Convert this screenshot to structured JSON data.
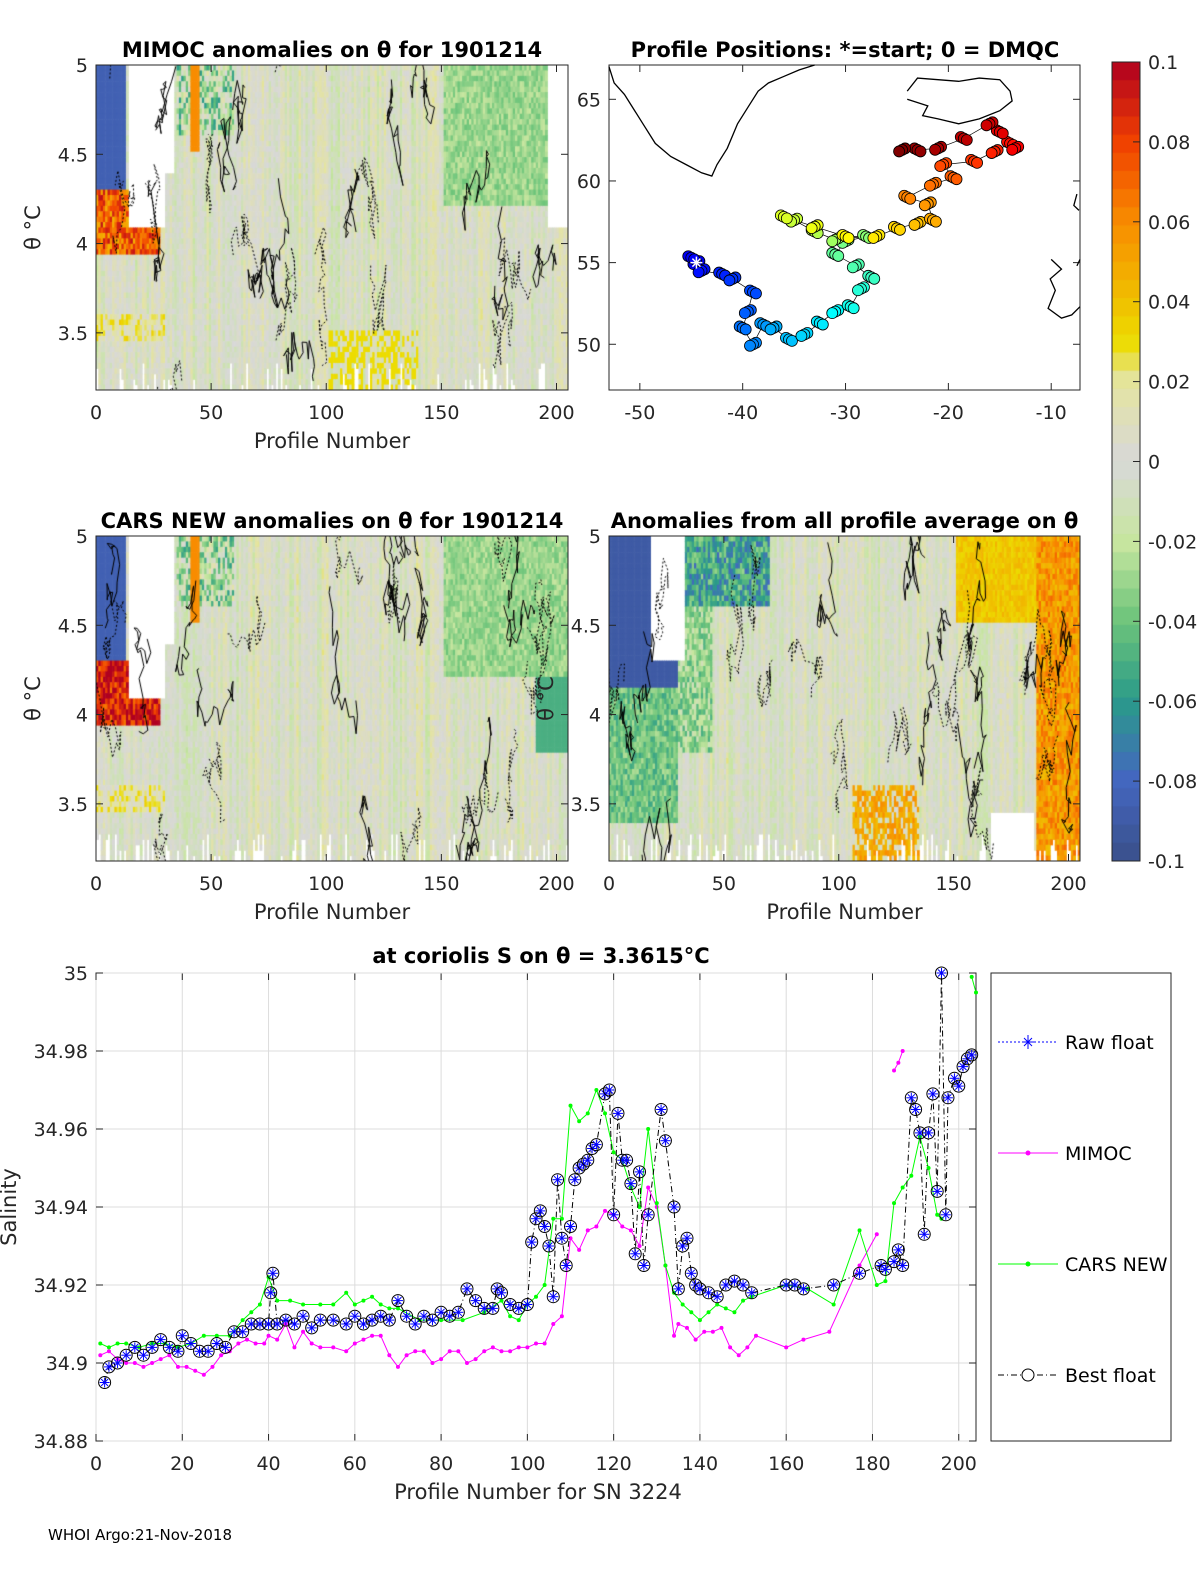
{
  "panels": {
    "mimoc": {
      "title": "MIMOC anomalies on θ  for 1901214",
      "xlabel": "Profile Number",
      "ylabel": "θ °C",
      "xticks": [
        0,
        50,
        100,
        150,
        200
      ],
      "yticks": [
        3.5,
        4,
        4.5,
        5
      ],
      "ytick_labels": [
        "3.5",
        "4",
        "4.5",
        "5"
      ]
    },
    "map": {
      "title": "Profile Positions: *=start; 0 = DMQC",
      "xticks": [
        -50,
        -40,
        -30,
        -20,
        -10
      ],
      "yticks": [
        50,
        55,
        60,
        65
      ]
    },
    "cars": {
      "title": "CARS NEW anomalies on θ for 1901214",
      "xlabel": "Profile Number",
      "ylabel": "θ °C",
      "xticks": [
        0,
        50,
        100,
        150,
        200
      ],
      "yticks": [
        3.5,
        4,
        4.5,
        5
      ],
      "ytick_labels": [
        "3.5",
        "4",
        "4.5",
        "5"
      ]
    },
    "avg": {
      "title": "Anomalies from all profile average on θ",
      "xlabel": "Profile Number",
      "ylabel": "θ °C",
      "xticks": [
        0,
        50,
        100,
        150,
        200
      ],
      "yticks": [
        3.5,
        4,
        4.5,
        5
      ],
      "ytick_labels": [
        "3.5",
        "4",
        "4.5",
        "5"
      ]
    }
  },
  "colorbar": {
    "range": [
      -0.1,
      0.1
    ],
    "tick_labels": [
      "0.1",
      "0.08",
      "0.06",
      "0.04",
      "0.02",
      "0",
      "-0.02",
      "-0.04",
      "-0.06",
      "-0.08",
      "-0.1"
    ]
  },
  "map_track": [
    [
      -44.5,
      55
    ],
    [
      -45,
      55.3
    ],
    [
      -44,
      54.5
    ],
    [
      -42,
      54.3
    ],
    [
      -41,
      54
    ],
    [
      -39,
      53.2
    ],
    [
      -39.5,
      52
    ],
    [
      -40,
      51
    ],
    [
      -39,
      50
    ],
    [
      -38,
      51.2
    ],
    [
      -37,
      51
    ],
    [
      -35.5,
      50.3
    ],
    [
      -34,
      50.6
    ],
    [
      -32.5,
      51.3
    ],
    [
      -31,
      52
    ],
    [
      -29.5,
      52.3
    ],
    [
      -28.5,
      53.4
    ],
    [
      -27.5,
      54.1
    ],
    [
      -29,
      54.8
    ],
    [
      -31,
      55.5
    ],
    [
      -30,
      56.3
    ],
    [
      -28,
      56.6
    ],
    [
      -31,
      56.4
    ],
    [
      -33,
      56.9
    ],
    [
      -35,
      57.6
    ],
    [
      -36,
      57.8
    ],
    [
      -33,
      57.2
    ],
    [
      -30,
      56.6
    ],
    [
      -27,
      56.6
    ],
    [
      -25,
      57.1
    ],
    [
      -23,
      57.4
    ],
    [
      -21.5,
      57.6
    ],
    [
      -22,
      58.6
    ],
    [
      -24,
      59
    ],
    [
      -21.5,
      59.8
    ],
    [
      -19.5,
      60.2
    ],
    [
      -20.5,
      61
    ],
    [
      -17.5,
      61.2
    ],
    [
      -15.5,
      61.8
    ],
    [
      -14,
      62.3
    ],
    [
      -13.5,
      62
    ],
    [
      -15,
      63
    ],
    [
      -16,
      63.5
    ],
    [
      -18.5,
      62.6
    ],
    [
      -21,
      62
    ],
    [
      -23,
      61.9
    ],
    [
      -24.5,
      61.9
    ]
  ],
  "chart_data": {
    "type": "line",
    "title": "at coriolis S on θ = 3.3615°C",
    "xlabel": "Profile Number for SN 3224",
    "ylabel": "Salinity",
    "xlim": [
      0,
      204
    ],
    "ylim": [
      34.88,
      35
    ],
    "xticks": [
      0,
      20,
      40,
      60,
      80,
      100,
      120,
      140,
      160,
      180,
      200
    ],
    "yticks": [
      34.88,
      34.9,
      34.92,
      34.94,
      34.96,
      34.98,
      35
    ],
    "ytick_labels": [
      "34.88",
      "34.9",
      "34.92",
      "34.94",
      "34.96",
      "34.98",
      "35"
    ],
    "grid": true,
    "legend": {
      "placement": "outside-right",
      "entries": [
        "Raw float",
        "MIMOC",
        "CARS NEW",
        "Best float"
      ]
    },
    "series": [
      {
        "name": "MIMOC",
        "color": "#ff00ff",
        "x": [
          1,
          3,
          5,
          7,
          9,
          11,
          13,
          15,
          17,
          19,
          21,
          23,
          25,
          27,
          29,
          31,
          33,
          35,
          37,
          39,
          40,
          42,
          44,
          46,
          48,
          50,
          52,
          55,
          58,
          60,
          62,
          64,
          66,
          68,
          70,
          72,
          74,
          76,
          78,
          80,
          82,
          84,
          86,
          88,
          90,
          92,
          94,
          96,
          98,
          100,
          102,
          104,
          106,
          108,
          110,
          112,
          114,
          116,
          118,
          120,
          122,
          124,
          126,
          128,
          130,
          132,
          134,
          135,
          137,
          139,
          141,
          143,
          145,
          147,
          149,
          151,
          153,
          160,
          164,
          170,
          177,
          181,
          183,
          185,
          186,
          187
        ],
        "y": [
          34.902,
          34.903,
          34.901,
          34.9,
          34.9,
          34.899,
          34.9,
          34.901,
          34.902,
          34.899,
          34.899,
          34.898,
          34.897,
          34.899,
          34.902,
          34.903,
          34.905,
          34.906,
          34.905,
          34.905,
          34.907,
          34.906,
          34.91,
          34.904,
          34.908,
          34.905,
          34.904,
          34.904,
          34.903,
          34.905,
          34.906,
          34.907,
          34.907,
          34.902,
          34.899,
          34.902,
          34.903,
          34.903,
          34.9,
          34.901,
          34.903,
          34.903,
          34.9,
          34.901,
          34.903,
          34.904,
          34.903,
          34.903,
          34.904,
          34.904,
          34.905,
          34.905,
          34.91,
          34.912,
          34.932,
          34.929,
          34.934,
          34.935,
          34.939,
          34.938,
          34.935,
          34.934,
          34.93,
          34.945,
          34.94,
          34.925,
          34.907,
          34.91,
          34.909,
          34.906,
          34.908,
          34.908,
          34.909,
          34.904,
          34.902,
          34.904,
          34.907,
          34.904,
          34.906,
          34.908,
          34.925,
          34.933,
          null,
          34.975,
          34.977,
          34.98
        ]
      },
      {
        "name": "CARS NEW",
        "color": "#00ff00",
        "x": [
          1,
          3,
          5,
          7,
          10,
          13,
          16,
          19,
          22,
          25,
          28,
          31,
          34,
          36,
          38,
          40,
          42,
          45,
          48,
          52,
          55,
          58,
          60,
          62,
          64,
          66,
          68,
          70,
          75,
          80,
          85,
          90,
          94,
          96,
          98,
          100,
          102,
          104,
          106,
          108,
          110,
          112,
          114,
          116,
          118,
          120,
          122,
          124,
          126,
          128,
          130,
          132,
          134,
          136,
          138,
          140,
          142,
          144,
          146,
          148,
          150,
          152,
          160,
          165,
          171,
          177,
          181,
          183,
          185,
          187,
          189,
          191,
          193,
          195,
          196,
          198,
          203,
          204
        ],
        "y": [
          34.905,
          34.904,
          34.905,
          34.905,
          34.904,
          34.905,
          34.905,
          34.904,
          34.905,
          34.907,
          34.907,
          34.907,
          34.911,
          34.913,
          34.915,
          34.922,
          34.916,
          34.916,
          34.915,
          34.915,
          34.915,
          34.918,
          34.915,
          34.916,
          34.917,
          34.915,
          34.914,
          34.914,
          34.911,
          34.911,
          34.911,
          34.913,
          34.916,
          34.912,
          34.911,
          34.915,
          34.917,
          34.92,
          34.937,
          34.937,
          34.966,
          34.962,
          34.964,
          34.97,
          34.964,
          34.954,
          34.952,
          34.945,
          34.94,
          34.96,
          34.941,
          34.925,
          34.918,
          34.915,
          34.913,
          34.911,
          34.913,
          34.915,
          34.914,
          34.913,
          34.916,
          34.917,
          34.92,
          34.919,
          34.915,
          34.934,
          34.92,
          34.921,
          34.941,
          34.945,
          34.948,
          34.958,
          34.95,
          34.938,
          34.937,
          null,
          34.999,
          34.995
        ]
      },
      {
        "name": "Best float",
        "color": "#000000",
        "x": [
          2,
          3,
          5,
          7,
          9,
          11,
          13,
          15,
          17,
          19,
          20,
          22,
          24,
          26,
          28,
          30,
          32,
          34,
          36,
          38,
          40,
          40.5,
          41,
          42,
          44,
          46,
          48,
          50,
          52,
          55,
          58,
          60,
          62,
          64,
          66,
          68,
          70,
          72,
          74,
          76,
          78,
          80,
          82,
          84,
          86,
          88,
          90,
          92,
          93,
          94,
          96,
          98,
          100,
          101,
          102,
          103,
          104,
          105,
          106,
          107,
          108,
          109,
          110,
          111,
          112,
          113,
          114,
          115,
          116,
          118,
          119,
          120,
          121,
          122,
          123,
          124,
          125,
          126,
          127,
          128,
          131,
          132,
          134,
          135,
          136,
          137,
          138,
          139,
          140,
          142,
          144,
          146,
          148,
          150,
          152,
          160,
          162,
          164,
          171,
          177,
          182,
          183,
          185,
          186,
          187,
          189,
          190,
          191,
          192,
          193,
          194,
          195,
          196,
          197,
          197.5,
          199,
          200,
          201,
          202,
          203
        ],
        "y": [
          34.895,
          34.899,
          34.9,
          34.902,
          34.904,
          34.902,
          34.904,
          34.906,
          34.904,
          34.903,
          34.907,
          34.905,
          34.903,
          34.903,
          34.905,
          34.904,
          34.908,
          34.908,
          34.91,
          34.91,
          34.91,
          34.918,
          34.923,
          34.91,
          34.911,
          34.91,
          34.912,
          34.909,
          34.911,
          34.911,
          34.91,
          34.912,
          34.91,
          34.911,
          34.912,
          34.911,
          34.916,
          34.912,
          34.91,
          34.912,
          34.911,
          34.913,
          34.912,
          34.913,
          34.919,
          34.916,
          34.914,
          34.914,
          34.919,
          34.918,
          34.915,
          34.914,
          34.915,
          34.931,
          34.937,
          34.939,
          34.935,
          34.93,
          34.917,
          34.947,
          34.932,
          34.925,
          34.935,
          34.947,
          34.95,
          34.951,
          34.952,
          34.955,
          34.956,
          34.969,
          34.97,
          34.938,
          34.964,
          34.952,
          34.952,
          34.946,
          34.928,
          34.949,
          34.925,
          34.938,
          34.965,
          34.957,
          34.94,
          34.919,
          34.93,
          34.932,
          34.923,
          34.92,
          34.919,
          34.918,
          34.917,
          34.92,
          34.921,
          34.92,
          34.918,
          34.92,
          34.92,
          34.919,
          34.92,
          34.923,
          34.925,
          34.924,
          34.926,
          34.929,
          34.925,
          34.968,
          34.965,
          34.959,
          34.933,
          34.959,
          34.969,
          34.944,
          35.0,
          34.938,
          34.968,
          34.973,
          34.971,
          34.976,
          34.978,
          34.979
        ]
      }
    ]
  },
  "footer": "WHOI Argo:21-Nov-2018"
}
